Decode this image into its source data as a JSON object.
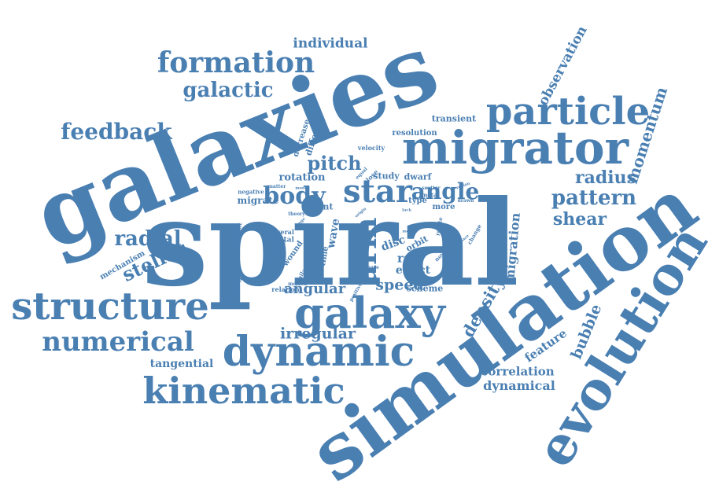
{
  "colors": {
    "word": "#4a7fb2",
    "background": "#ffffff"
  },
  "words": [
    {
      "key": "galaxies",
      "text": "galaxies"
    },
    {
      "key": "spiral",
      "text": "spiral"
    },
    {
      "key": "simulation",
      "text": "simulation"
    },
    {
      "key": "evolution",
      "text": "evolution"
    },
    {
      "key": "migrator",
      "text": "migrator"
    },
    {
      "key": "particle",
      "text": "particle"
    },
    {
      "key": "structure",
      "text": "structure"
    },
    {
      "key": "galaxy",
      "text": "galaxy"
    },
    {
      "key": "dynamic",
      "text": "dynamic"
    },
    {
      "key": "kinematic",
      "text": "kinematic"
    },
    {
      "key": "numerical",
      "text": "numerical"
    },
    {
      "key": "formation",
      "text": "formation"
    },
    {
      "key": "feedback",
      "text": "feedback"
    },
    {
      "key": "galactic",
      "text": "galactic"
    },
    {
      "key": "individual",
      "text": "individual"
    },
    {
      "key": "star",
      "text": "star"
    },
    {
      "key": "angle",
      "text": "angle"
    },
    {
      "key": "pattern",
      "text": "pattern"
    },
    {
      "key": "shear",
      "text": "shear"
    },
    {
      "key": "radius",
      "text": "radius"
    },
    {
      "key": "momentum",
      "text": "momentum"
    },
    {
      "key": "observation",
      "text": "observation"
    },
    {
      "key": "body",
      "text": "body"
    },
    {
      "key": "pitch",
      "text": "pitch"
    },
    {
      "key": "radial",
      "text": "radial"
    },
    {
      "key": "stellar",
      "text": "stellar"
    },
    {
      "key": "arm",
      "text": "arm"
    },
    {
      "key": "density",
      "text": "density"
    },
    {
      "key": "bubble",
      "text": "bubble"
    },
    {
      "key": "migration",
      "text": "migration"
    },
    {
      "key": "irregular",
      "text": "irregular"
    },
    {
      "key": "speed",
      "text": "speed"
    },
    {
      "key": "angular",
      "text": "angular"
    },
    {
      "key": "correlation",
      "text": "correlation"
    },
    {
      "key": "dynamical",
      "text": "dynamical"
    },
    {
      "key": "feature",
      "text": "feature"
    },
    {
      "key": "tangential",
      "text": "tangential"
    },
    {
      "key": "mechanism",
      "text": "mechanism"
    },
    {
      "key": "rotation",
      "text": "rotation"
    },
    {
      "key": "migrate",
      "text": "migrate"
    },
    {
      "key": "study",
      "text": "study"
    },
    {
      "key": "dwarf",
      "text": "dwarf"
    },
    {
      "key": "transient",
      "text": "transient"
    },
    {
      "key": "resolution",
      "text": "resolution"
    },
    {
      "key": "velocity",
      "text": "velocity"
    },
    {
      "key": "decrease",
      "text": "decrease"
    },
    {
      "key": "different",
      "text": "different"
    },
    {
      "key": "wave",
      "text": "wave"
    },
    {
      "key": "disc",
      "text": "disc"
    },
    {
      "key": "rate",
      "text": "rate"
    },
    {
      "key": "effect",
      "text": "effect"
    },
    {
      "key": "orbit",
      "text": "orbit"
    },
    {
      "key": "type",
      "text": "type"
    },
    {
      "key": "more",
      "text": "more"
    },
    {
      "key": "front",
      "text": "front"
    },
    {
      "key": "scheme",
      "text": "scheme"
    },
    {
      "key": "induced",
      "text": "induced"
    },
    {
      "key": "relation",
      "text": "relation"
    },
    {
      "key": "several",
      "text": "several"
    },
    {
      "key": "orbital",
      "text": "orbital"
    },
    {
      "key": "wound",
      "text": "wound"
    },
    {
      "key": "time",
      "text": "time"
    },
    {
      "key": "negative",
      "text": "negative"
    },
    {
      "key": "metal",
      "text": "metal"
    },
    {
      "key": "scatter",
      "text": "scatter"
    },
    {
      "key": "close",
      "text": "close"
    },
    {
      "key": "equal",
      "text": "equal"
    },
    {
      "key": "matter",
      "text": "matter"
    },
    {
      "key": "position",
      "text": "position"
    },
    {
      "key": "novel",
      "text": "novel"
    },
    {
      "key": "constant",
      "text": "constant"
    },
    {
      "key": "positive",
      "text": "positive"
    },
    {
      "key": "rotate",
      "text": "rotate"
    },
    {
      "key": "change",
      "text": "change"
    },
    {
      "key": "drawn",
      "text": "drawn"
    },
    {
      "key": "region",
      "text": "region"
    },
    {
      "key": "lack",
      "text": "lack"
    },
    {
      "key": "theory",
      "text": "theory"
    },
    {
      "key": "mode",
      "text": "mode"
    },
    {
      "key": "range",
      "text": "range"
    },
    {
      "key": "higher",
      "text": "higher"
    },
    {
      "key": "strong",
      "text": "strong"
    },
    {
      "key": "similar",
      "text": "similar"
    },
    {
      "key": "motion",
      "text": "motion"
    },
    {
      "key": "phase",
      "text": "phase"
    },
    {
      "key": "messy",
      "text": "messy"
    },
    {
      "key": "space",
      "text": "space"
    },
    {
      "key": "origin",
      "text": "origin"
    }
  ]
}
